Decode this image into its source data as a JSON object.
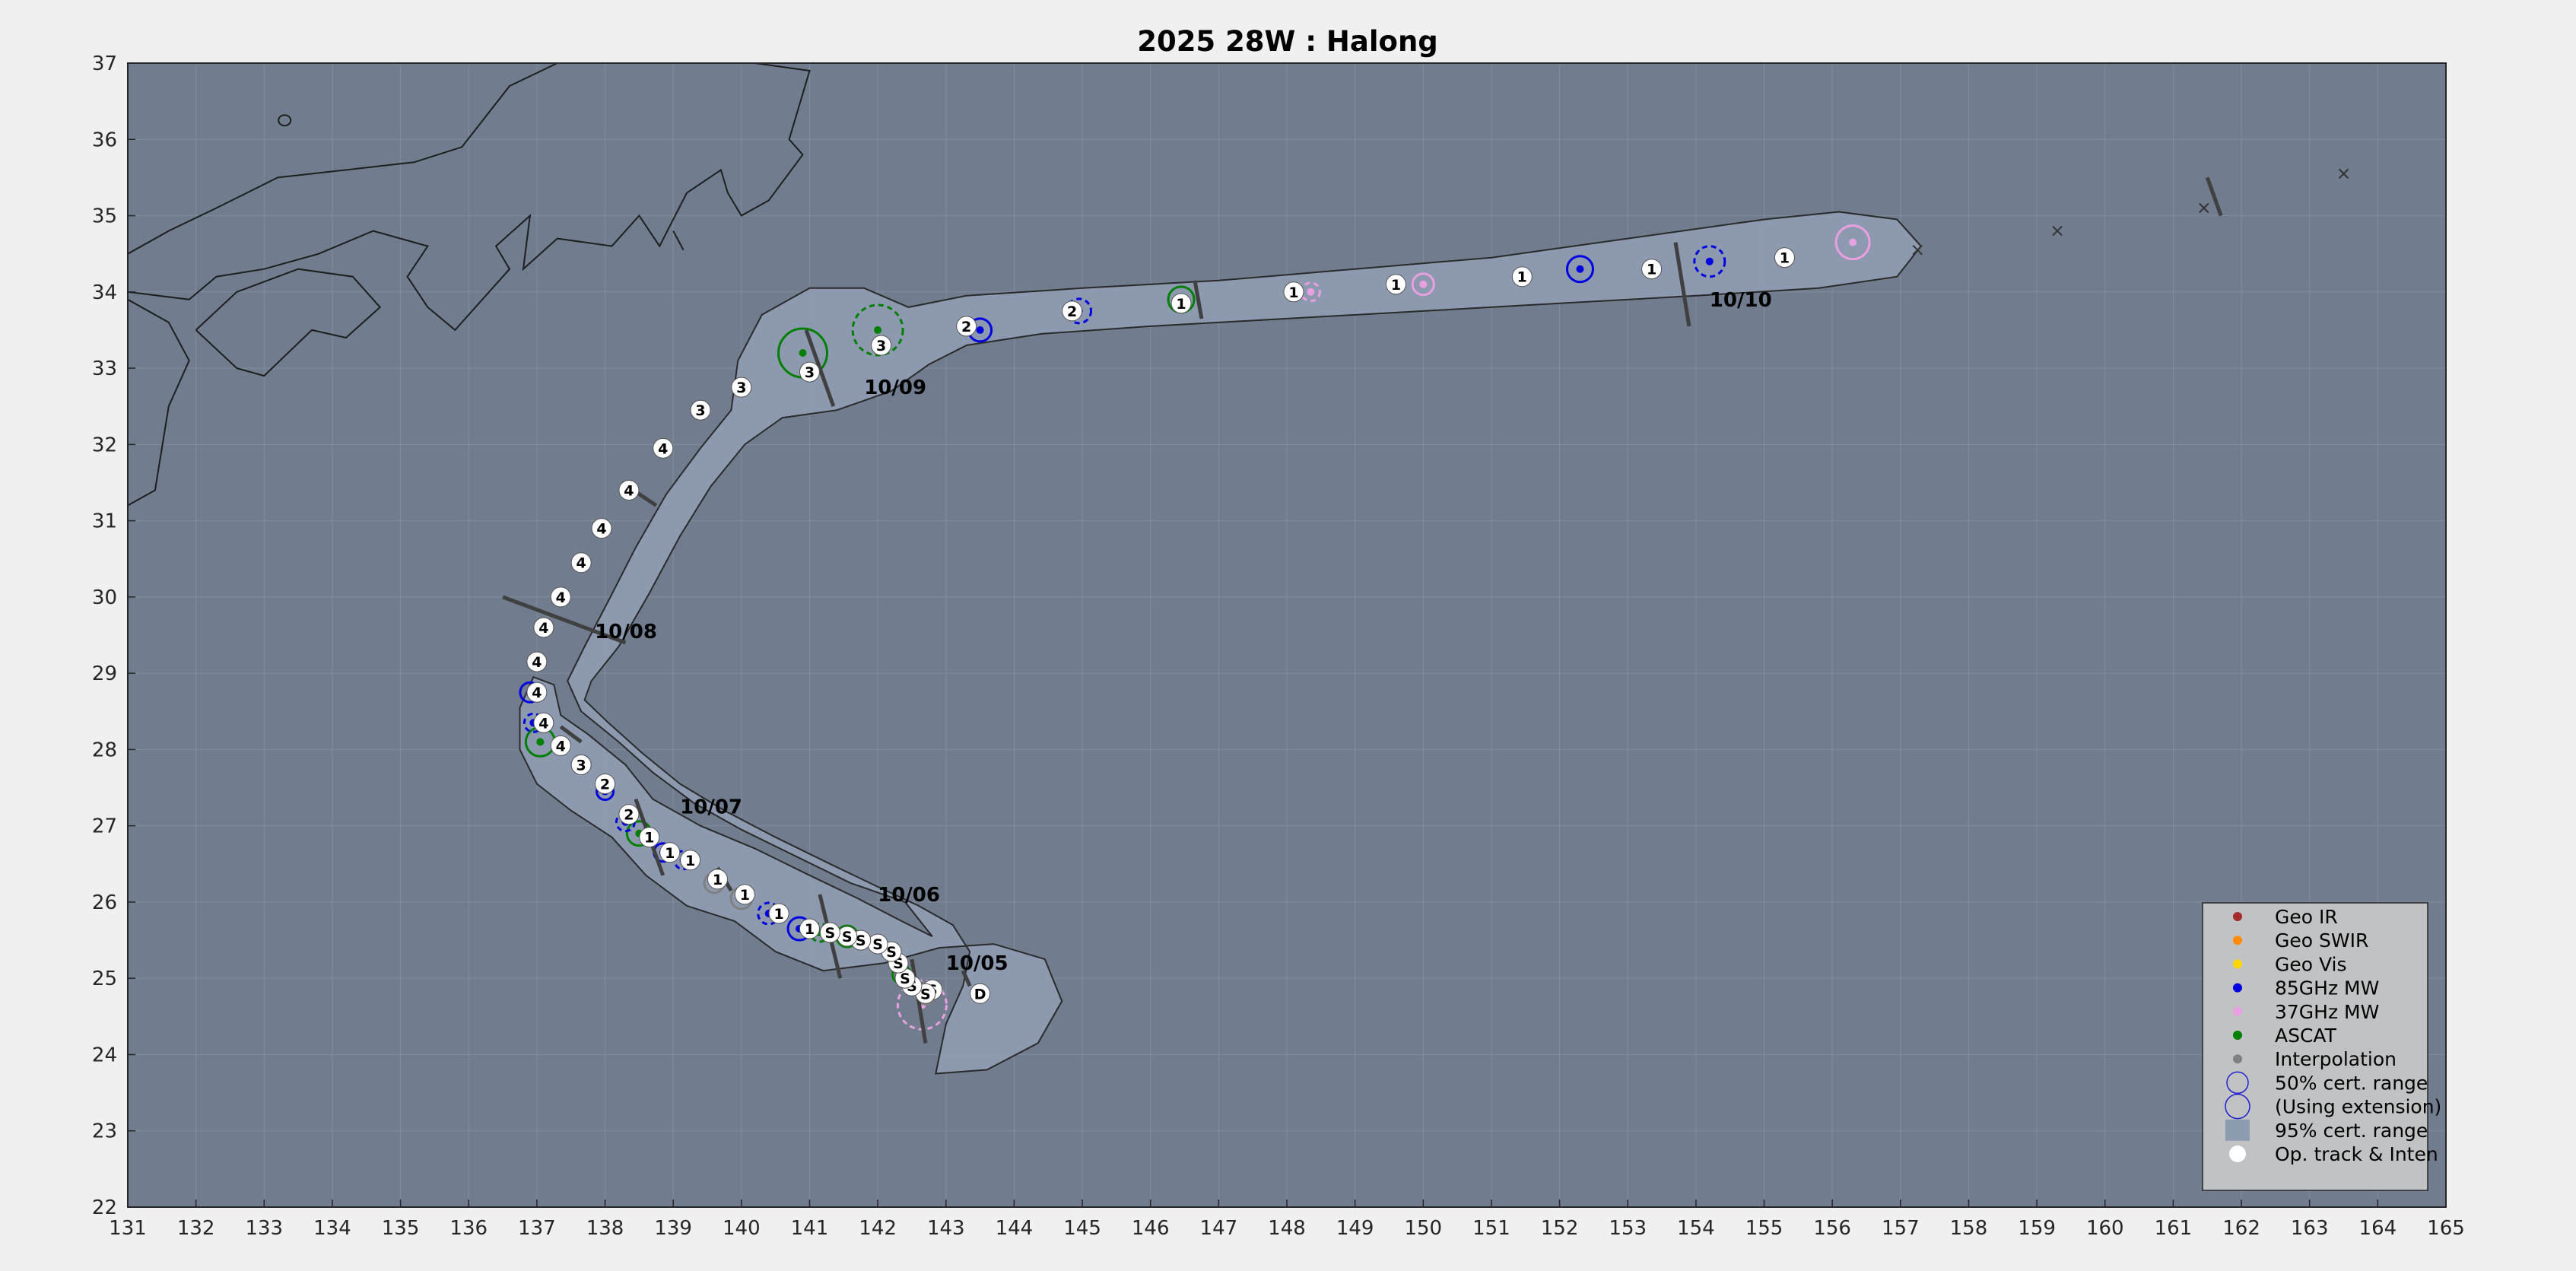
{
  "chart_data": {
    "type": "scatter",
    "title": "2025  28W :  Halong",
    "xlim": [
      131,
      165
    ],
    "ylim": [
      22,
      37
    ],
    "xticks": [
      131,
      132,
      133,
      134,
      135,
      136,
      137,
      138,
      139,
      140,
      141,
      142,
      143,
      144,
      145,
      146,
      147,
      148,
      149,
      150,
      151,
      152,
      153,
      154,
      155,
      156,
      157,
      158,
      159,
      160,
      161,
      162,
      163,
      164,
      165
    ],
    "yticks": [
      22,
      23,
      24,
      25,
      26,
      27,
      28,
      29,
      30,
      31,
      32,
      33,
      34,
      35,
      36,
      37
    ],
    "grid": true,
    "legend_position": "bottom-right",
    "colors": {
      "background": "#717d8e",
      "figure": "#f0f0f0",
      "cone": "#8d9bb1",
      "geo_ir": "#a52a2a",
      "geo_swir": "#ff8c00",
      "geo_vis": "#ffd700",
      "mw85": "#0000e0",
      "mw37": "#e8a0e0",
      "ascat": "#007f00",
      "interp": "#808080",
      "track_marker": "#ffffff"
    },
    "track": [
      {
        "lon": 143.5,
        "lat": 24.8,
        "label": "D"
      },
      {
        "lon": 142.8,
        "lat": 24.85,
        "label": "S"
      },
      {
        "lon": 142.7,
        "lat": 24.8,
        "label": "S"
      },
      {
        "lon": 142.5,
        "lat": 24.9,
        "label": "S"
      },
      {
        "lon": 142.4,
        "lat": 25.0,
        "label": "S"
      },
      {
        "lon": 142.3,
        "lat": 25.2,
        "label": "S"
      },
      {
        "lon": 142.2,
        "lat": 25.35,
        "label": "S"
      },
      {
        "lon": 142.0,
        "lat": 25.45,
        "label": "S"
      },
      {
        "lon": 141.75,
        "lat": 25.5,
        "label": "S"
      },
      {
        "lon": 141.55,
        "lat": 25.55,
        "label": "S"
      },
      {
        "lon": 141.3,
        "lat": 25.6,
        "label": "S"
      },
      {
        "lon": 141.0,
        "lat": 25.65,
        "label": "1"
      },
      {
        "lon": 140.55,
        "lat": 25.85,
        "label": "1"
      },
      {
        "lon": 140.05,
        "lat": 26.1,
        "label": "1"
      },
      {
        "lon": 139.65,
        "lat": 26.3,
        "label": "1"
      },
      {
        "lon": 139.25,
        "lat": 26.55,
        "label": "1"
      },
      {
        "lon": 138.95,
        "lat": 26.65,
        "label": "1"
      },
      {
        "lon": 138.65,
        "lat": 26.85,
        "label": "1"
      },
      {
        "lon": 138.35,
        "lat": 27.15,
        "label": "2"
      },
      {
        "lon": 138.0,
        "lat": 27.55,
        "label": "2"
      },
      {
        "lon": 137.65,
        "lat": 27.8,
        "label": "3"
      },
      {
        "lon": 137.35,
        "lat": 28.05,
        "label": "4"
      },
      {
        "lon": 137.1,
        "lat": 28.35,
        "label": "4"
      },
      {
        "lon": 137.0,
        "lat": 28.75,
        "label": "4"
      },
      {
        "lon": 137.0,
        "lat": 29.15,
        "label": "4"
      },
      {
        "lon": 137.1,
        "lat": 29.6,
        "label": "4"
      },
      {
        "lon": 137.35,
        "lat": 30.0,
        "label": "4"
      },
      {
        "lon": 137.65,
        "lat": 30.45,
        "label": "4"
      },
      {
        "lon": 137.95,
        "lat": 30.9,
        "label": "4"
      },
      {
        "lon": 138.35,
        "lat": 31.4,
        "label": "4"
      },
      {
        "lon": 138.85,
        "lat": 31.95,
        "label": "4"
      },
      {
        "lon": 139.4,
        "lat": 32.45,
        "label": "3"
      },
      {
        "lon": 140.0,
        "lat": 32.75,
        "label": "3"
      },
      {
        "lon": 141.0,
        "lat": 32.95,
        "label": "3"
      },
      {
        "lon": 142.05,
        "lat": 33.3,
        "label": "3"
      },
      {
        "lon": 143.3,
        "lat": 33.55,
        "label": "2"
      },
      {
        "lon": 144.85,
        "lat": 33.75,
        "label": "2"
      },
      {
        "lon": 146.45,
        "lat": 33.85,
        "label": "1"
      },
      {
        "lon": 148.1,
        "lat": 34.0,
        "label": "1"
      },
      {
        "lon": 149.6,
        "lat": 34.1,
        "label": "1"
      },
      {
        "lon": 151.45,
        "lat": 34.2,
        "label": "1"
      },
      {
        "lon": 153.35,
        "lat": 34.3,
        "label": "1"
      },
      {
        "lon": 155.3,
        "lat": 34.45,
        "label": "1"
      }
    ],
    "extended_points": [
      {
        "lon": 157.25,
        "lat": 34.55
      },
      {
        "lon": 159.3,
        "lat": 34.8
      },
      {
        "lon": 161.45,
        "lat": 35.1
      },
      {
        "lon": 163.5,
        "lat": 35.55
      }
    ],
    "date_labels": [
      {
        "lon": 143.0,
        "lat": 25.2,
        "text": "10/05"
      },
      {
        "lon": 142.0,
        "lat": 26.1,
        "text": "10/06"
      },
      {
        "lon": 139.1,
        "lat": 27.25,
        "text": "10/07"
      },
      {
        "lon": 137.85,
        "lat": 29.55,
        "text": "10/08"
      },
      {
        "lon": 141.8,
        "lat": 32.75,
        "text": "10/09"
      },
      {
        "lon": 154.2,
        "lat": 33.9,
        "text": "10/10"
      }
    ],
    "legend": [
      "Geo IR",
      "Geo SWIR",
      "Geo Vis",
      "85GHz MW",
      "37GHz MW",
      "ASCAT",
      "Interpolation",
      "50% cert. range",
      "(Using extension)",
      "95% cert. range",
      "Op. track & Inten"
    ]
  }
}
